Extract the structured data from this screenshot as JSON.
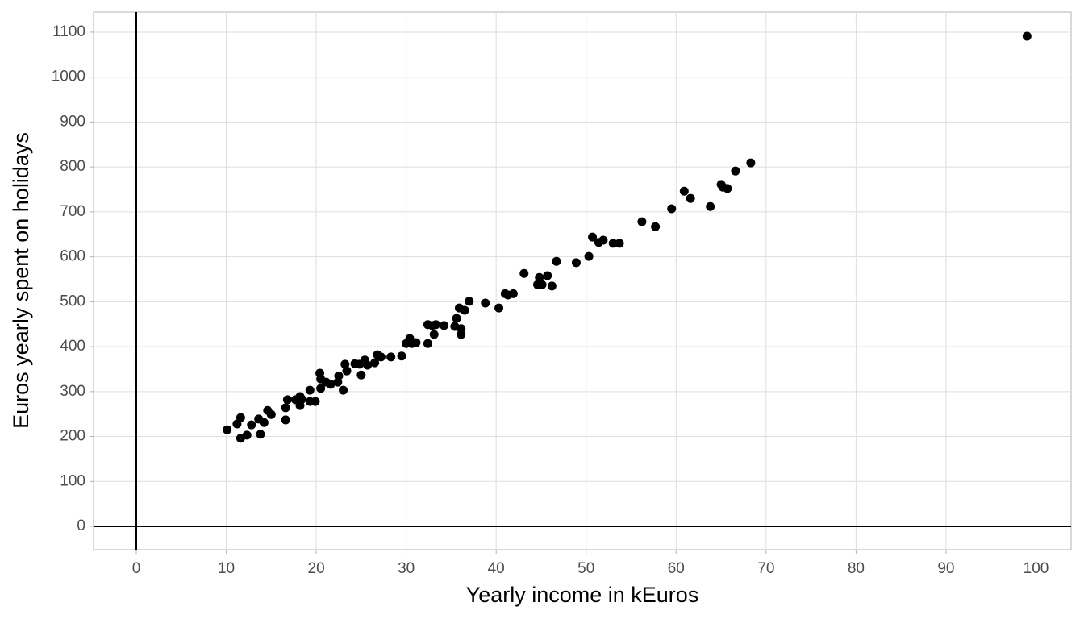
{
  "chart_data": {
    "type": "scatter",
    "x_label": "Yearly income in kEuros",
    "y_label": "Euros yearly spent on holidays",
    "color": "#000000",
    "grid": true,
    "zero_lines": true,
    "xlim": [
      -4.75,
      103.9
    ],
    "ylim": [
      -52,
      1144.8
    ],
    "xticks": [
      0,
      10,
      20,
      30,
      40,
      50,
      60,
      70,
      80,
      90,
      100
    ],
    "yticks": [
      0,
      100,
      200,
      300,
      400,
      500,
      600,
      700,
      800,
      900,
      1000,
      1100
    ],
    "x": [
      10.1,
      11.2,
      11.6,
      11.6,
      12.3,
      12.8,
      13.6,
      13.8,
      14.2,
      14.6,
      15.0,
      16.6,
      16.6,
      16.8,
      17.7,
      18.2,
      18.2,
      18.4,
      19.3,
      19.3,
      19.9,
      20.4,
      20.5,
      20.5,
      21.1,
      21.6,
      22.4,
      22.5,
      23.0,
      23.2,
      23.4,
      24.3,
      24.8,
      25.0,
      25.4,
      25.7,
      26.5,
      26.8,
      27.2,
      28.3,
      29.5,
      30.0,
      30.4,
      30.6,
      31.1,
      32.4,
      32.4,
      32.9,
      33.1,
      33.3,
      34.2,
      35.4,
      35.6,
      35.9,
      36.1,
      36.1,
      36.5,
      37.0,
      38.8,
      40.3,
      41.0,
      41.3,
      41.9,
      43.1,
      44.6,
      44.8,
      45.1,
      45.7,
      46.2,
      46.7,
      48.9,
      50.3,
      50.7,
      51.4,
      51.9,
      53.0,
      53.7,
      56.2,
      57.7,
      59.5,
      60.9,
      61.6,
      63.8,
      65.0,
      65.2,
      65.7,
      66.6,
      68.3,
      99.0
    ],
    "values": [
      215,
      228,
      242,
      196,
      203,
      226,
      239,
      205,
      231,
      258,
      249,
      237,
      264,
      282,
      282,
      289,
      269,
      283,
      303,
      278,
      278,
      341,
      328,
      307,
      321,
      316,
      321,
      335,
      303,
      361,
      346,
      362,
      361,
      337,
      370,
      359,
      364,
      382,
      377,
      377,
      379,
      407,
      418,
      407,
      409,
      407,
      449,
      447,
      427,
      449,
      447,
      445,
      463,
      486,
      440,
      427,
      481,
      501,
      497,
      486,
      518,
      515,
      518,
      563,
      538,
      554,
      538,
      558,
      535,
      590,
      587,
      601,
      644,
      632,
      637,
      630,
      630,
      678,
      667,
      707,
      746,
      730,
      712,
      761,
      755,
      752,
      791,
      809,
      1091
    ]
  }
}
